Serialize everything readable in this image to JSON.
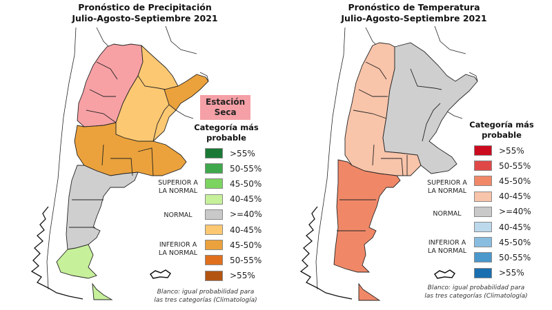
{
  "left": {
    "title_line1": "Pronóstico de Precipitación",
    "title_line2": "Julio-Agosto-Septiembre 2021",
    "dry_season_line1": "Estación",
    "dry_season_line2": "Seca",
    "legend_head_line1": "Categoría más",
    "legend_head_line2": "probable",
    "groups": {
      "above_line1": "SUPERIOR A",
      "above_line2": "LA NORMAL",
      "normal": "NORMAL",
      "below_line1": "INFERIOR A",
      "below_line2": "LA NORMAL"
    },
    "legend": [
      {
        "label": ">55%",
        "color": "#1a7a35"
      },
      {
        "label": "50-55%",
        "color": "#3fa84c"
      },
      {
        "label": "45-50%",
        "color": "#7cd460"
      },
      {
        "label": "40-45%",
        "color": "#c6f09a"
      },
      {
        "label": ">=40%",
        "color": "#c9c9c9"
      },
      {
        "label": "40-45%",
        "color": "#fcc872"
      },
      {
        "label": "45-50%",
        "color": "#eba23c"
      },
      {
        "label": "50-55%",
        "color": "#e0701e"
      },
      {
        "label": ">55%",
        "color": "#b35512"
      }
    ],
    "note_line1": "Blanco: igual probabilidad para",
    "note_line2": "las tres categorías (Climatología)"
  },
  "right": {
    "title_line1": "Pronóstico de Temperatura",
    "title_line2": "Julio-Agosto-Septiembre 2021",
    "legend_head_line1": "Categoría más",
    "legend_head_line2": "probable",
    "groups": {
      "above_line1": "SUPERIOR A",
      "above_line2": "LA NORMAL",
      "normal": "NORMAL",
      "below_line1": "INFERIOR A",
      "below_line2": "LA NORMAL"
    },
    "legend": [
      {
        "label": ">55%",
        "color": "#cc0a1e"
      },
      {
        "label": "50-55%",
        "color": "#e04848"
      },
      {
        "label": "45-50%",
        "color": "#f08868"
      },
      {
        "label": "40-45%",
        "color": "#f8c4aa"
      },
      {
        "label": ">=40%",
        "color": "#c9c9c9"
      },
      {
        "label": "40-45%",
        "color": "#bcd9ec"
      },
      {
        "label": "45-50%",
        "color": "#88bde0"
      },
      {
        "label": "50-55%",
        "color": "#4a98cc"
      },
      {
        "label": ">55%",
        "color": "#1a6fb0"
      }
    ],
    "note_line1": "Blanco: igual probabilidad para",
    "note_line2": "las tres categorías (Climatología)"
  },
  "map_colors": {
    "dry": "#f7a1a5",
    "prec_below_40_45": "#fcc872",
    "prec_below_45_50": "#eba23c",
    "prec_normal": "#cfcfcf",
    "prec_above_40_45": "#c6f09a",
    "temp_above_40_45": "#f8c4aa",
    "temp_above_45_50": "#f08868",
    "temp_normal": "#cfcfcf"
  }
}
